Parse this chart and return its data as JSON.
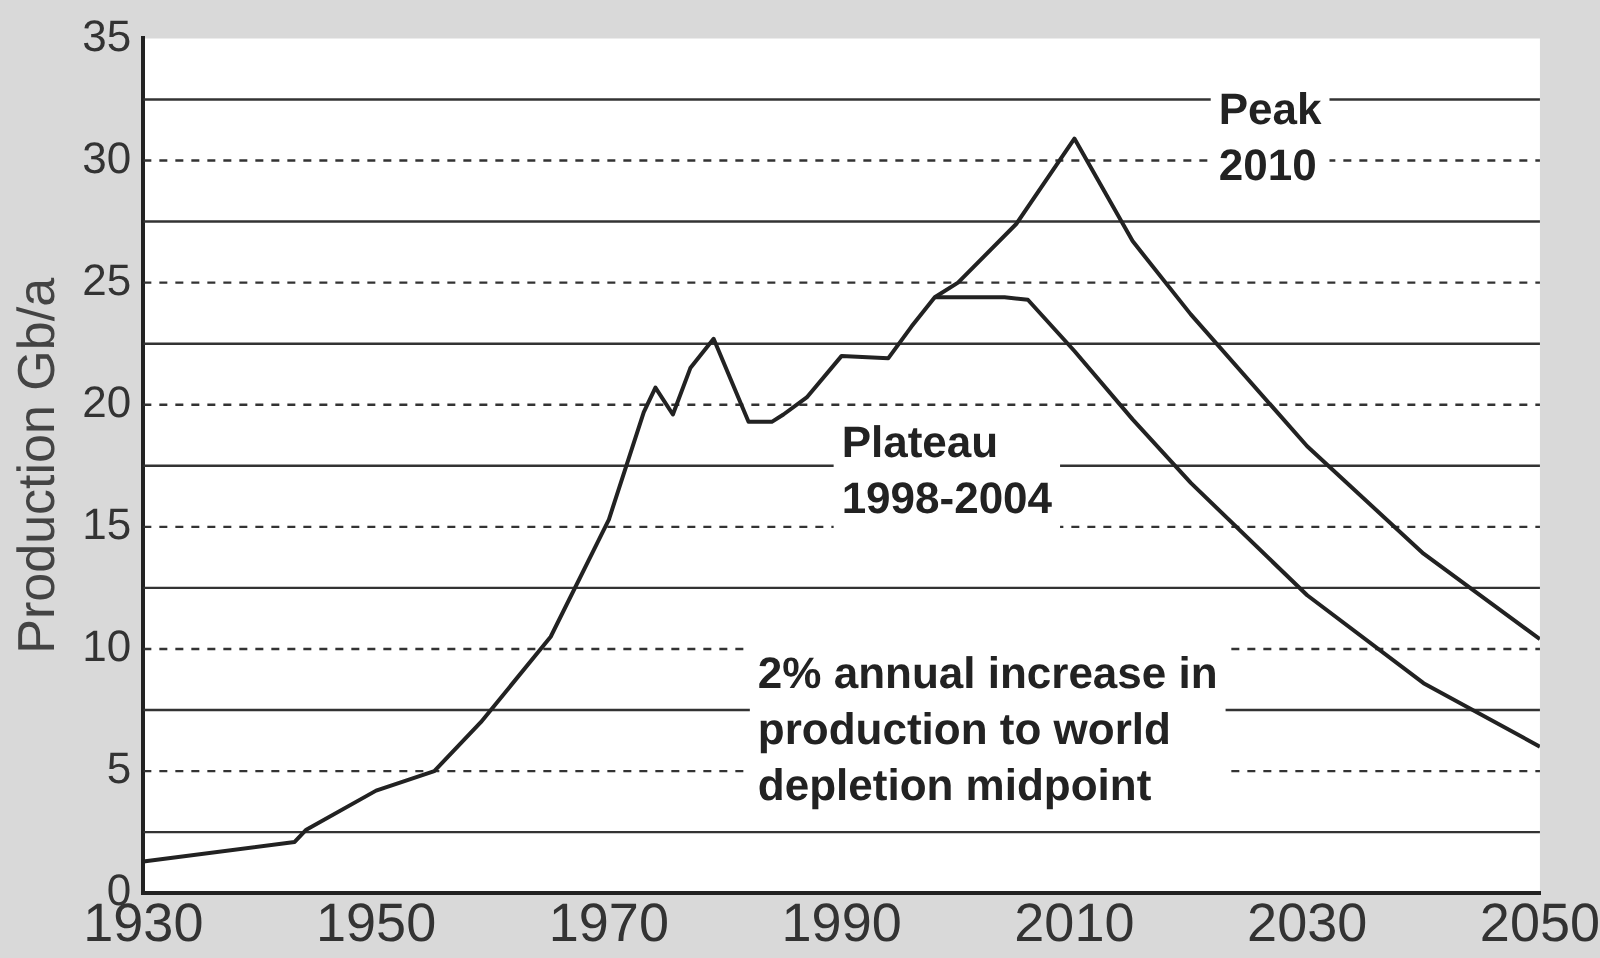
{
  "chart_data": {
    "type": "line",
    "ylabel": "Production Gb/a",
    "xlim": [
      1930,
      2050
    ],
    "xticks": [
      1930,
      1950,
      1970,
      1990,
      2010,
      2030,
      2050
    ],
    "ylim": [
      0,
      35
    ],
    "yticks": [
      0,
      {
        "value": 2.5,
        "label": null
      },
      5,
      {
        "value": 7.5,
        "label": null
      },
      10,
      {
        "value": 12.5,
        "label": null
      },
      15,
      {
        "value": 17.5,
        "label": null
      },
      20,
      {
        "value": 22.5,
        "label": null
      },
      25,
      {
        "value": 27.5,
        "label": null
      },
      30,
      {
        "value": 32.5,
        "label": null
      },
      35
    ],
    "grid": "y",
    "legend": false,
    "marker": "none",
    "line_style": "solid",
    "series": [
      {
        "color": "#222222",
        "x": [
          1930,
          1943,
          1944,
          1950,
          1955,
          1959,
          1965,
          1970,
          1973,
          1974,
          1975.5,
          1977,
          1979,
          1982,
          1984,
          1985,
          1987,
          1990,
          1994,
          1996,
          1998,
          2000,
          2005,
          2010,
          2015,
          2020,
          2030,
          2040,
          2050
        ],
        "values": [
          1.3,
          2.1,
          2.6,
          4.2,
          5.0,
          7.0,
          10.5,
          15.3,
          19.7,
          20.7,
          19.6,
          21.5,
          22.7,
          19.3,
          19.3,
          19.6,
          20.3,
          22.0,
          21.9,
          23.2,
          24.4,
          25.0,
          27.4,
          30.9,
          26.7,
          23.7,
          18.3,
          13.9,
          10.4
        ]
      },
      {
        "color": "#222222",
        "x": [
          1998,
          2004,
          2006,
          2010,
          2015,
          2020,
          2030,
          2040,
          2050
        ],
        "values": [
          24.4,
          24.4,
          24.3,
          22.2,
          19.4,
          16.8,
          12.2,
          8.6,
          6.0
        ]
      }
    ],
    "annotations": [
      "Peak\n2010",
      "Plateau\n1998-2004",
      "2% annual increase in\nproduction to world\ndepletion midpoint"
    ]
  }
}
